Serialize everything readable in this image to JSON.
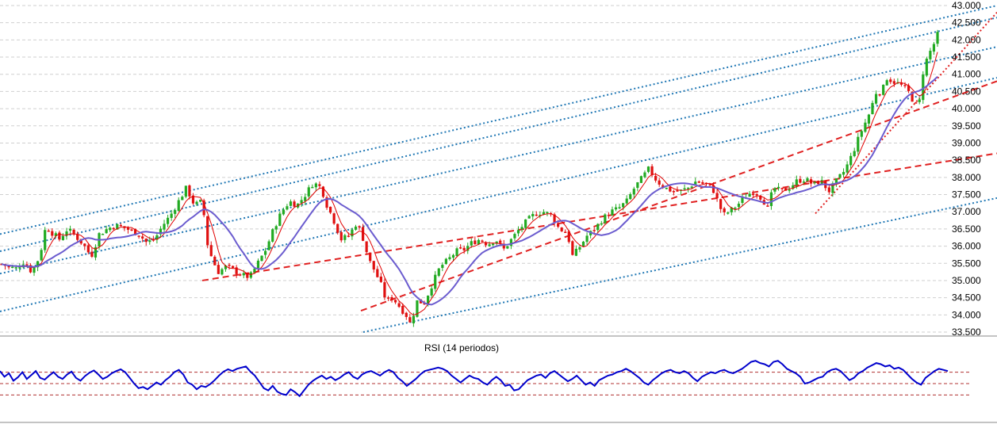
{
  "chart_data": {
    "type": "candlestick",
    "title": "",
    "price_axis": {
      "ylim": [
        33500,
        43000
      ],
      "tick_labels": [
        "43.000",
        "42.500",
        "42.000",
        "41.500",
        "41.000",
        "40.500",
        "40.000",
        "39.500",
        "39.000",
        "38.500",
        "38.000",
        "37.500",
        "37.000",
        "36.500",
        "36.000",
        "35.500",
        "35.000",
        "34.500",
        "34.000",
        "33.500"
      ],
      "grid": true,
      "grid_style": "dashed"
    },
    "candles": {
      "count": 260,
      "close_path": [
        [
          0,
          35500
        ],
        [
          10,
          35400
        ],
        [
          20,
          35350
        ],
        [
          30,
          35550
        ],
        [
          40,
          35250
        ],
        [
          50,
          35700
        ],
        [
          58,
          36600
        ],
        [
          65,
          36400
        ],
        [
          75,
          36200
        ],
        [
          85,
          36500
        ],
        [
          95,
          36300
        ],
        [
          105,
          36050
        ],
        [
          115,
          35700
        ],
        [
          125,
          36350
        ],
        [
          135,
          36500
        ],
        [
          145,
          36600
        ],
        [
          155,
          36550
        ],
        [
          165,
          36450
        ],
        [
          175,
          36350
        ],
        [
          185,
          36100
        ],
        [
          195,
          36200
        ],
        [
          205,
          36600
        ],
        [
          215,
          36900
        ],
        [
          225,
          37300
        ],
        [
          235,
          37700
        ],
        [
          245,
          37200
        ],
        [
          255,
          37300
        ],
        [
          262,
          36000
        ],
        [
          268,
          35600
        ],
        [
          275,
          35250
        ],
        [
          285,
          35400
        ],
        [
          295,
          35300
        ],
        [
          305,
          35150
        ],
        [
          315,
          35100
        ],
        [
          325,
          35500
        ],
        [
          335,
          35900
        ],
        [
          345,
          36500
        ],
        [
          355,
          37000
        ],
        [
          365,
          37300
        ],
        [
          375,
          37200
        ],
        [
          385,
          37500
        ],
        [
          395,
          37850
        ],
        [
          405,
          37700
        ],
        [
          412,
          37200
        ],
        [
          420,
          36800
        ],
        [
          430,
          36200
        ],
        [
          440,
          36300
        ],
        [
          450,
          36700
        ],
        [
          458,
          36200
        ],
        [
          465,
          35600
        ],
        [
          472,
          35300
        ],
        [
          480,
          34900
        ],
        [
          487,
          34400
        ],
        [
          495,
          34500
        ],
        [
          505,
          34200
        ],
        [
          512,
          34000
        ],
        [
          518,
          33700
        ],
        [
          525,
          34400
        ],
        [
          535,
          34350
        ],
        [
          545,
          34900
        ],
        [
          555,
          35400
        ],
        [
          565,
          35600
        ],
        [
          575,
          35850
        ],
        [
          585,
          35900
        ],
        [
          595,
          36100
        ],
        [
          605,
          36200
        ],
        [
          615,
          36050
        ],
        [
          625,
          36200
        ],
        [
          635,
          35900
        ],
        [
          645,
          36200
        ],
        [
          655,
          36500
        ],
        [
          665,
          36750
        ],
        [
          675,
          36950
        ],
        [
          685,
          37000
        ],
        [
          695,
          36900
        ],
        [
          705,
          36500
        ],
        [
          715,
          36400
        ],
        [
          722,
          35700
        ],
        [
          730,
          35950
        ],
        [
          740,
          36300
        ],
        [
          750,
          36500
        ],
        [
          760,
          36800
        ],
        [
          770,
          37000
        ],
        [
          780,
          37100
        ],
        [
          790,
          37300
        ],
        [
          800,
          37700
        ],
        [
          810,
          38000
        ],
        [
          818,
          38250
        ],
        [
          828,
          37900
        ],
        [
          838,
          37700
        ],
        [
          848,
          37600
        ],
        [
          858,
          37600
        ],
        [
          868,
          37700
        ],
        [
          878,
          37900
        ],
        [
          888,
          37800
        ],
        [
          898,
          37700
        ],
        [
          905,
          37300
        ],
        [
          912,
          36900
        ],
        [
          922,
          37050
        ],
        [
          932,
          37250
        ],
        [
          942,
          37500
        ],
        [
          952,
          37600
        ],
        [
          962,
          37350
        ],
        [
          968,
          37100
        ],
        [
          975,
          37700
        ],
        [
          985,
          37600
        ],
        [
          995,
          37700
        ],
        [
          1005,
          37900
        ],
        [
          1015,
          37950
        ],
        [
          1025,
          37800
        ],
        [
          1035,
          37900
        ],
        [
          1045,
          37600
        ],
        [
          1055,
          37900
        ],
        [
          1065,
          38200
        ],
        [
          1075,
          38700
        ],
        [
          1085,
          39300
        ],
        [
          1095,
          39800
        ],
        [
          1105,
          40500
        ],
        [
          1112,
          40500
        ],
        [
          1118,
          40900
        ],
        [
          1125,
          40800
        ],
        [
          1135,
          40700
        ],
        [
          1145,
          40500
        ],
        [
          1152,
          40200
        ],
        [
          1158,
          40000
        ],
        [
          1164,
          41100
        ],
        [
          1170,
          41550
        ],
        [
          1176,
          41800
        ],
        [
          1182,
          42150
        ]
      ],
      "ma_fast_color": "#e00000",
      "ma_slow_color": "#6b5ccf"
    },
    "trend_lines": [
      {
        "style": "dotted",
        "color": "#1f77b4",
        "from": [
          0,
          36350
        ],
        "to": [
          1257,
          43000
        ]
      },
      {
        "style": "dotted",
        "color": "#1f77b4",
        "from": [
          0,
          35850
        ],
        "to": [
          1257,
          42650
        ]
      },
      {
        "style": "dotted",
        "color": "#1f77b4",
        "from": [
          0,
          35200
        ],
        "to": [
          1257,
          41800
        ]
      },
      {
        "style": "dotted",
        "color": "#1f77b4",
        "from": [
          0,
          34100
        ],
        "to": [
          1257,
          40900
        ]
      },
      {
        "style": "dotted",
        "color": "#1f77b4",
        "from": [
          458,
          33500
        ],
        "to": [
          1257,
          37400
        ]
      },
      {
        "style": "dashed",
        "color": "#e02020",
        "from": [
          455,
          34120
        ],
        "to": [
          1257,
          40800
        ]
      },
      {
        "style": "dashed",
        "color": "#e02020",
        "from": [
          255,
          35000
        ],
        "to": [
          1257,
          38700
        ]
      },
      {
        "style": "dotted",
        "color": "#e02020",
        "from": [
          1028,
          36950
        ],
        "to": [
          1257,
          42800
        ]
      }
    ],
    "rsi": {
      "title": "RSI (14 periodos)",
      "ylim": [
        0,
        100
      ],
      "levels": [
        70,
        50,
        30
      ],
      "level_color": "#b03030",
      "line_color": "#0000cc",
      "values": [
        72,
        62,
        68,
        55,
        61,
        70,
        58,
        65,
        72,
        60,
        57,
        64,
        70,
        62,
        58,
        66,
        71,
        60,
        55,
        63,
        69,
        73,
        66,
        58,
        62,
        68,
        72,
        75,
        70,
        60,
        50,
        42,
        44,
        40,
        46,
        52,
        48,
        56,
        62,
        70,
        74,
        66,
        52,
        48,
        40,
        46,
        44,
        49,
        56,
        64,
        71,
        75,
        72,
        76,
        78,
        80,
        71,
        64,
        53,
        42,
        38,
        46,
        36,
        32,
        30,
        40,
        35,
        28,
        38,
        48,
        55,
        60,
        64,
        58,
        62,
        56,
        60,
        66,
        70,
        62,
        58,
        66,
        70,
        72,
        68,
        64,
        70,
        74,
        70,
        60,
        54,
        46,
        52,
        58,
        66,
        72,
        74,
        76,
        78,
        76,
        72,
        64,
        58,
        52,
        58,
        64,
        60,
        58,
        52,
        48,
        56,
        62,
        56,
        46,
        48,
        38,
        40,
        48,
        56,
        60,
        64,
        66,
        60,
        68,
        72,
        66,
        60,
        54,
        58,
        64,
        56,
        48,
        52,
        46,
        56,
        60,
        64,
        66,
        70,
        72,
        76,
        72,
        66,
        60,
        52,
        48,
        56,
        62,
        68,
        72,
        74,
        70,
        68,
        72,
        68,
        60,
        54,
        62,
        66,
        70,
        68,
        72,
        74,
        70,
        68,
        72,
        76,
        82,
        88,
        90,
        86,
        84,
        80,
        88,
        90,
        84,
        76,
        72,
        68,
        62,
        50,
        52,
        56,
        60,
        62,
        70,
        74,
        76,
        72,
        64,
        56,
        60,
        68,
        72,
        78,
        82,
        86,
        84,
        80,
        82,
        76,
        78,
        74,
        66,
        58,
        52,
        48,
        60,
        66,
        72,
        76,
        74,
        72
      ]
    }
  }
}
